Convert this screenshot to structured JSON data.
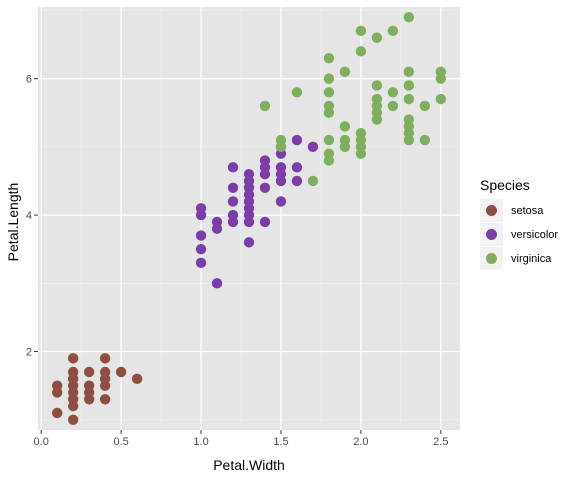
{
  "chart_data": {
    "type": "scatter",
    "xlabel": "Petal.Width",
    "ylabel": "Petal.Length",
    "xlim": [
      -0.02,
      2.62
    ],
    "ylim": [
      0.85,
      7.05
    ],
    "x_ticks": [
      0.0,
      0.5,
      1.0,
      1.5,
      2.0,
      2.5
    ],
    "x_tick_labels": [
      "0.0",
      "0.5",
      "1.0",
      "1.5",
      "2.0",
      "2.5"
    ],
    "y_ticks": [
      2,
      4,
      6
    ],
    "y_tick_labels": [
      "2",
      "4",
      "6"
    ],
    "grid": true,
    "legend_title": "Species",
    "legend_position": "right",
    "series": [
      {
        "name": "setosa",
        "color": "#8e4e42",
        "points": [
          [
            0.1,
            1.5
          ],
          [
            0.1,
            1.4
          ],
          [
            0.1,
            1.1
          ],
          [
            0.2,
            1.9
          ],
          [
            0.2,
            1.7
          ],
          [
            0.2,
            1.6
          ],
          [
            0.2,
            1.5
          ],
          [
            0.2,
            1.4
          ],
          [
            0.2,
            1.3
          ],
          [
            0.2,
            1.2
          ],
          [
            0.2,
            1.0
          ],
          [
            0.3,
            1.7
          ],
          [
            0.3,
            1.5
          ],
          [
            0.3,
            1.4
          ],
          [
            0.3,
            1.3
          ],
          [
            0.4,
            1.9
          ],
          [
            0.4,
            1.7
          ],
          [
            0.4,
            1.6
          ],
          [
            0.4,
            1.5
          ],
          [
            0.4,
            1.3
          ],
          [
            0.5,
            1.7
          ],
          [
            0.6,
            1.6
          ]
        ]
      },
      {
        "name": "versicolor",
        "color": "#7b3da7",
        "points": [
          [
            1.0,
            4.1
          ],
          [
            1.0,
            4.0
          ],
          [
            1.0,
            3.7
          ],
          [
            1.0,
            3.5
          ],
          [
            1.0,
            3.3
          ],
          [
            1.1,
            3.9
          ],
          [
            1.1,
            3.8
          ],
          [
            1.1,
            3.0
          ],
          [
            1.2,
            4.7
          ],
          [
            1.2,
            4.4
          ],
          [
            1.2,
            4.2
          ],
          [
            1.2,
            4.0
          ],
          [
            1.2,
            3.9
          ],
          [
            1.3,
            4.6
          ],
          [
            1.3,
            4.5
          ],
          [
            1.3,
            4.4
          ],
          [
            1.3,
            4.3
          ],
          [
            1.3,
            4.2
          ],
          [
            1.3,
            4.1
          ],
          [
            1.3,
            4.0
          ],
          [
            1.3,
            3.9
          ],
          [
            1.3,
            3.6
          ],
          [
            1.4,
            4.8
          ],
          [
            1.4,
            4.7
          ],
          [
            1.4,
            4.6
          ],
          [
            1.4,
            4.4
          ],
          [
            1.4,
            3.9
          ],
          [
            1.5,
            4.9
          ],
          [
            1.5,
            4.7
          ],
          [
            1.5,
            4.6
          ],
          [
            1.5,
            4.5
          ],
          [
            1.5,
            4.2
          ],
          [
            1.6,
            5.1
          ],
          [
            1.6,
            4.7
          ],
          [
            1.6,
            4.5
          ],
          [
            1.7,
            5.0
          ]
        ]
      },
      {
        "name": "virginica",
        "color": "#7fae5c",
        "points": [
          [
            1.4,
            5.6
          ],
          [
            1.5,
            5.1
          ],
          [
            1.5,
            5.0
          ],
          [
            1.6,
            5.8
          ],
          [
            1.7,
            4.5
          ],
          [
            1.8,
            6.3
          ],
          [
            1.8,
            6.0
          ],
          [
            1.8,
            5.8
          ],
          [
            1.8,
            5.6
          ],
          [
            1.8,
            5.5
          ],
          [
            1.8,
            5.1
          ],
          [
            1.8,
            4.9
          ],
          [
            1.8,
            4.8
          ],
          [
            1.9,
            6.1
          ],
          [
            1.9,
            5.3
          ],
          [
            1.9,
            5.1
          ],
          [
            1.9,
            5.0
          ],
          [
            2.0,
            6.7
          ],
          [
            2.0,
            6.4
          ],
          [
            2.0,
            5.2
          ],
          [
            2.0,
            5.1
          ],
          [
            2.0,
            5.0
          ],
          [
            2.0,
            4.9
          ],
          [
            2.1,
            6.6
          ],
          [
            2.1,
            5.9
          ],
          [
            2.1,
            5.7
          ],
          [
            2.1,
            5.6
          ],
          [
            2.1,
            5.5
          ],
          [
            2.1,
            5.4
          ],
          [
            2.2,
            6.7
          ],
          [
            2.2,
            5.8
          ],
          [
            2.2,
            5.6
          ],
          [
            2.3,
            6.9
          ],
          [
            2.3,
            6.1
          ],
          [
            2.3,
            5.9
          ],
          [
            2.3,
            5.7
          ],
          [
            2.3,
            5.4
          ],
          [
            2.3,
            5.3
          ],
          [
            2.3,
            5.2
          ],
          [
            2.3,
            5.1
          ],
          [
            2.4,
            5.6
          ],
          [
            2.4,
            5.1
          ],
          [
            2.5,
            6.1
          ],
          [
            2.5,
            6.0
          ],
          [
            2.5,
            5.7
          ]
        ]
      }
    ]
  }
}
